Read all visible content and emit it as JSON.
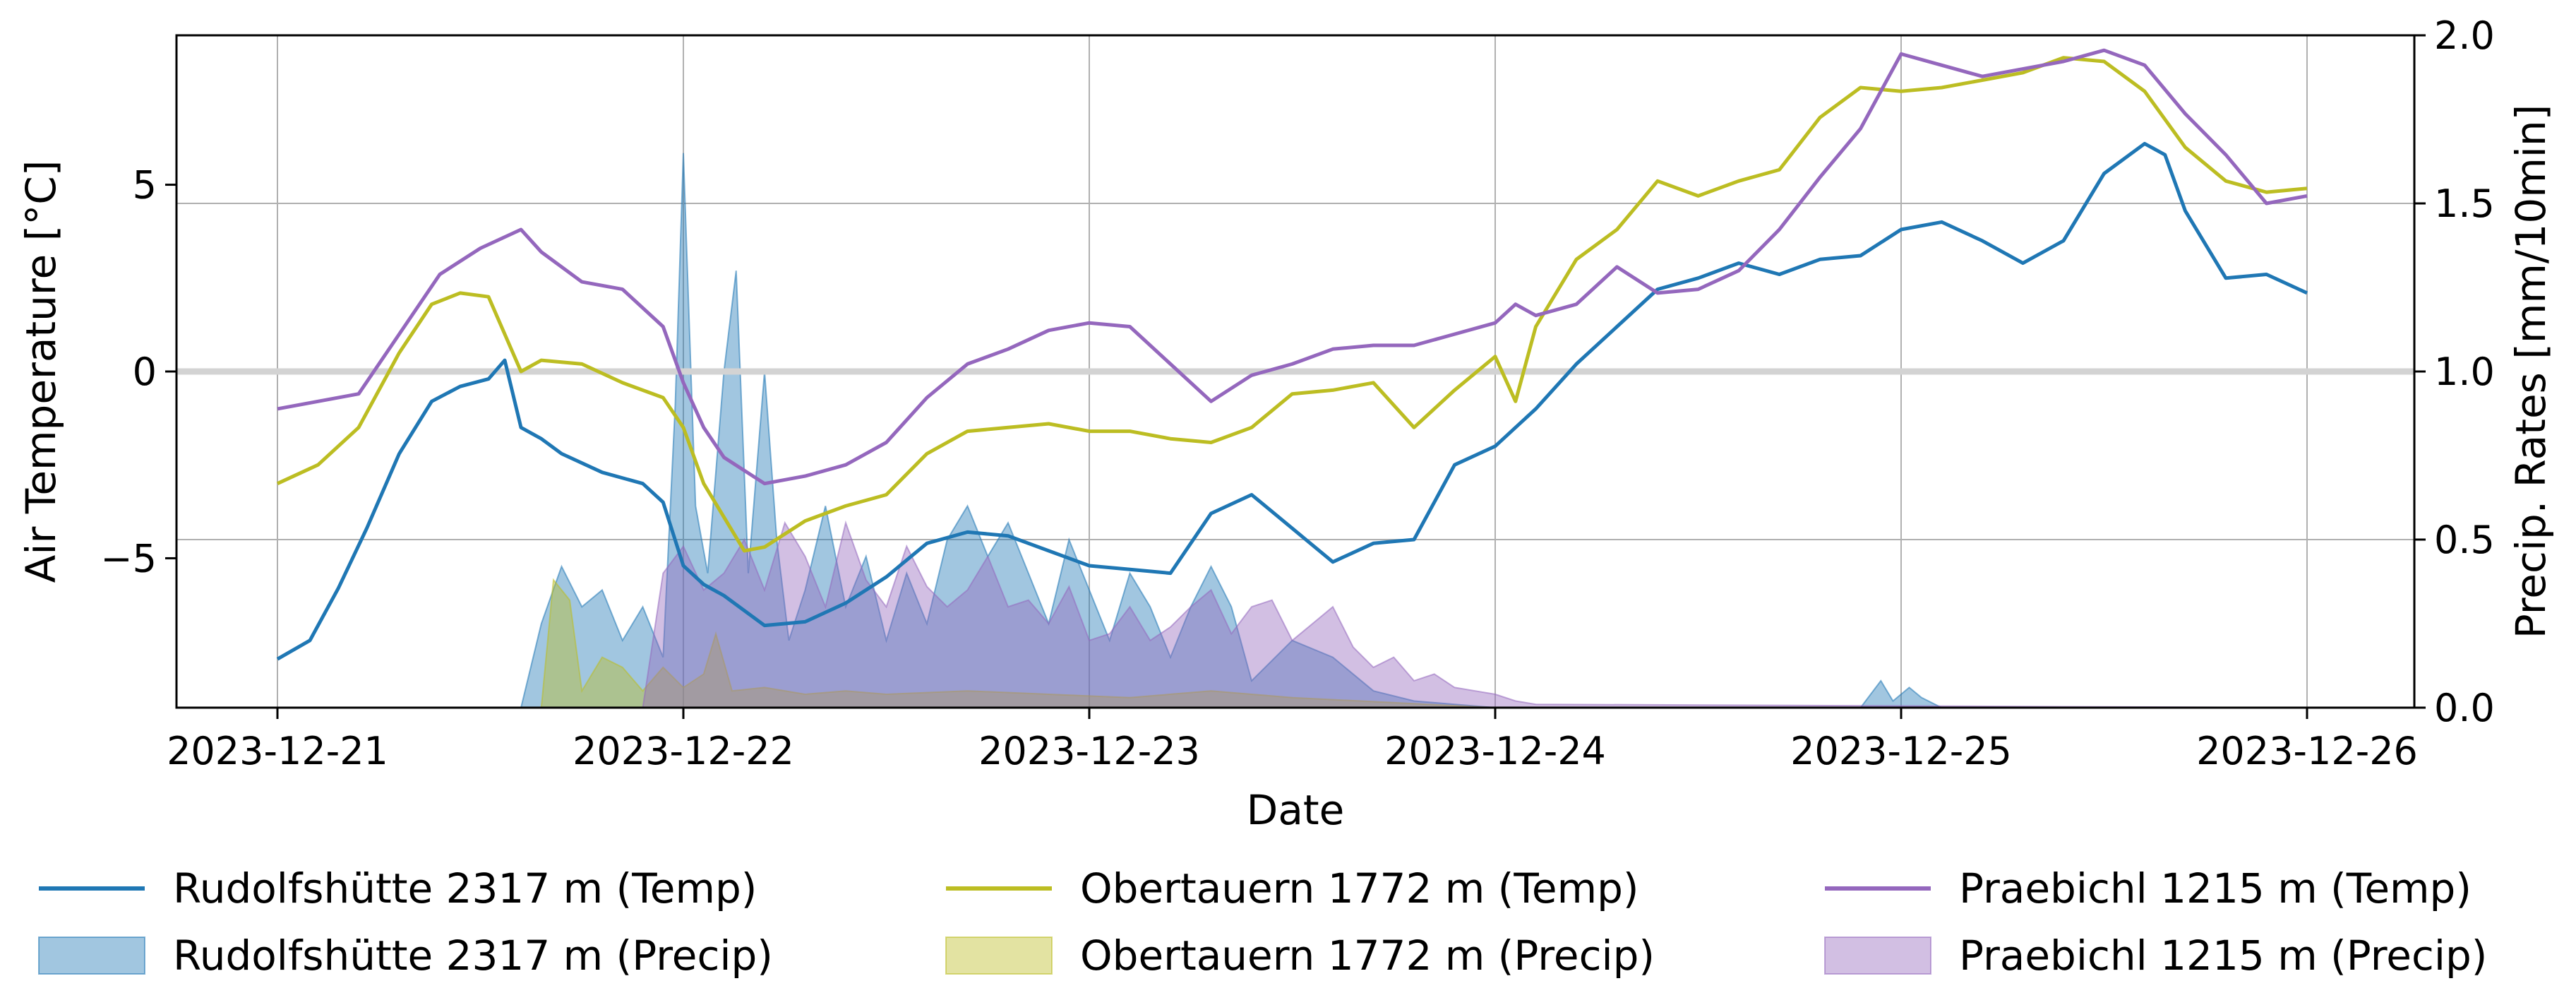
{
  "chart_data": {
    "type": "line",
    "xlabel": "Date",
    "ylabel": "Air Temperature [°C]",
    "y2label": "Precip. Rates [mm/10min]",
    "xlim": [
      0,
      5.08
    ],
    "ylim": [
      -9.0,
      9.0
    ],
    "y2lim": [
      0.0,
      2.0
    ],
    "x_ticks": [
      {
        "pos": 0,
        "label": "2023-12-21"
      },
      {
        "pos": 1,
        "label": "2023-12-22"
      },
      {
        "pos": 2,
        "label": "2023-12-23"
      },
      {
        "pos": 3,
        "label": "2023-12-24"
      },
      {
        "pos": 4,
        "label": "2023-12-25"
      },
      {
        "pos": 5,
        "label": "2023-12-26"
      }
    ],
    "y_ticks": [
      {
        "value": 5,
        "label": "5"
      },
      {
        "value": 0,
        "label": "0"
      },
      {
        "value": -5,
        "label": "−5"
      }
    ],
    "y2_ticks": [
      {
        "value": 0.0,
        "label": "0.0"
      },
      {
        "value": 0.5,
        "label": "0.5"
      },
      {
        "value": 1.0,
        "label": "1.0"
      },
      {
        "value": 1.5,
        "label": "1.5"
      },
      {
        "value": 2.0,
        "label": "2.0"
      }
    ],
    "grid": true,
    "legend_position": "bottom",
    "zero_line_color": "#d3d3d3",
    "temp_series": [
      {
        "name": "Rudolfshütte 2317 m (Temp)",
        "color": "#1f77b4",
        "x": [
          0,
          0.08,
          0.15,
          0.22,
          0.3,
          0.38,
          0.45,
          0.52,
          0.56,
          0.6,
          0.65,
          0.7,
          0.8,
          0.9,
          0.95,
          1.0,
          1.05,
          1.1,
          1.2,
          1.3,
          1.4,
          1.5,
          1.6,
          1.7,
          1.8,
          1.9,
          2.0,
          2.1,
          2.2,
          2.3,
          2.4,
          2.5,
          2.6,
          2.7,
          2.8,
          2.9,
          3.0,
          3.1,
          3.2,
          3.3,
          3.4,
          3.5,
          3.6,
          3.7,
          3.8,
          3.9,
          4.0,
          4.1,
          4.2,
          4.3,
          4.4,
          4.5,
          4.6,
          4.65,
          4.7,
          4.8,
          4.9,
          5.0
        ],
        "y": [
          -7.7,
          -7.2,
          -5.8,
          -4.2,
          -2.2,
          -0.8,
          -0.4,
          -0.2,
          0.3,
          -1.5,
          -1.8,
          -2.2,
          -2.7,
          -3.0,
          -3.5,
          -5.2,
          -5.7,
          -6.0,
          -6.8,
          -6.7,
          -6.2,
          -5.5,
          -4.6,
          -4.3,
          -4.4,
          -4.8,
          -5.2,
          -5.3,
          -5.4,
          -3.8,
          -3.3,
          -4.2,
          -5.1,
          -4.6,
          -4.5,
          -2.5,
          -2.0,
          -1.0,
          0.2,
          1.2,
          2.2,
          2.5,
          2.9,
          2.6,
          3.0,
          3.1,
          3.8,
          4.0,
          3.5,
          2.9,
          3.5,
          5.3,
          6.1,
          5.8,
          4.3,
          2.5,
          2.6,
          2.1
        ]
      },
      {
        "name": "Obertauern 1772 m (Temp)",
        "color": "#bcbd22",
        "x": [
          0,
          0.1,
          0.2,
          0.3,
          0.38,
          0.45,
          0.52,
          0.6,
          0.65,
          0.75,
          0.85,
          0.95,
          1.0,
          1.05,
          1.15,
          1.2,
          1.3,
          1.4,
          1.5,
          1.6,
          1.7,
          1.8,
          1.9,
          2.0,
          2.1,
          2.2,
          2.3,
          2.4,
          2.5,
          2.6,
          2.7,
          2.8,
          2.9,
          3.0,
          3.05,
          3.1,
          3.2,
          3.3,
          3.4,
          3.5,
          3.6,
          3.7,
          3.8,
          3.9,
          4.0,
          4.1,
          4.2,
          4.3,
          4.4,
          4.5,
          4.6,
          4.7,
          4.8,
          4.9,
          5.0
        ],
        "y": [
          -3.0,
          -2.5,
          -1.5,
          0.5,
          1.8,
          2.1,
          2.0,
          0.0,
          0.3,
          0.2,
          -0.3,
          -0.7,
          -1.5,
          -3.0,
          -4.8,
          -4.7,
          -4.0,
          -3.6,
          -3.3,
          -2.2,
          -1.6,
          -1.5,
          -1.4,
          -1.6,
          -1.6,
          -1.8,
          -1.9,
          -1.5,
          -0.6,
          -0.5,
          -0.3,
          -1.5,
          -0.5,
          0.4,
          -0.8,
          1.2,
          3.0,
          3.8,
          5.1,
          4.7,
          5.1,
          5.4,
          6.8,
          7.6,
          7.5,
          7.6,
          7.8,
          8.0,
          8.4,
          8.3,
          7.5,
          6.0,
          5.1,
          4.8,
          4.9
        ]
      },
      {
        "name": "Praebichl 1215 m (Temp)",
        "color": "#9467bd",
        "x": [
          0,
          0.1,
          0.2,
          0.3,
          0.4,
          0.5,
          0.6,
          0.65,
          0.75,
          0.85,
          0.95,
          1.0,
          1.05,
          1.1,
          1.2,
          1.3,
          1.4,
          1.5,
          1.6,
          1.7,
          1.8,
          1.9,
          2.0,
          2.1,
          2.2,
          2.3,
          2.4,
          2.5,
          2.6,
          2.7,
          2.8,
          2.9,
          3.0,
          3.05,
          3.1,
          3.2,
          3.3,
          3.4,
          3.5,
          3.6,
          3.7,
          3.8,
          3.9,
          4.0,
          4.1,
          4.2,
          4.3,
          4.4,
          4.5,
          4.6,
          4.7,
          4.8,
          4.9,
          5.0
        ],
        "y": [
          -1.0,
          -0.8,
          -0.6,
          1.0,
          2.6,
          3.3,
          3.8,
          3.2,
          2.4,
          2.2,
          1.2,
          -0.3,
          -1.5,
          -2.3,
          -3.0,
          -2.8,
          -2.5,
          -1.9,
          -0.7,
          0.2,
          0.6,
          1.1,
          1.3,
          1.2,
          0.2,
          -0.8,
          -0.1,
          0.2,
          0.6,
          0.7,
          0.7,
          1.0,
          1.3,
          1.8,
          1.5,
          1.8,
          2.8,
          2.1,
          2.2,
          2.7,
          3.8,
          5.2,
          6.5,
          8.5,
          8.2,
          7.9,
          8.1,
          8.3,
          8.6,
          8.2,
          6.9,
          5.8,
          4.5,
          4.7
        ]
      }
    ],
    "precip_series": [
      {
        "name": "Rudolfshütte 2317 m (Precip)",
        "color": "#1f77b4",
        "x": [
          0,
          0.6,
          0.65,
          0.7,
          0.75,
          0.8,
          0.85,
          0.9,
          0.95,
          0.98,
          1.0,
          1.03,
          1.06,
          1.1,
          1.13,
          1.16,
          1.2,
          1.23,
          1.26,
          1.3,
          1.35,
          1.4,
          1.45,
          1.5,
          1.55,
          1.6,
          1.65,
          1.7,
          1.75,
          1.8,
          1.85,
          1.9,
          1.95,
          2.0,
          2.05,
          2.1,
          2.15,
          2.2,
          2.25,
          2.3,
          2.35,
          2.4,
          2.5,
          2.6,
          2.7,
          2.8,
          3.0,
          3.9,
          3.95,
          3.98,
          4.02,
          4.05,
          4.1,
          5.0
        ],
        "y": [
          0.0,
          0.0,
          0.25,
          0.42,
          0.3,
          0.35,
          0.2,
          0.3,
          0.15,
          0.9,
          1.65,
          0.6,
          0.4,
          1.0,
          1.3,
          0.4,
          1.0,
          0.5,
          0.2,
          0.35,
          0.6,
          0.3,
          0.45,
          0.2,
          0.4,
          0.25,
          0.5,
          0.6,
          0.45,
          0.55,
          0.4,
          0.25,
          0.5,
          0.35,
          0.2,
          0.4,
          0.3,
          0.15,
          0.3,
          0.42,
          0.3,
          0.08,
          0.2,
          0.15,
          0.05,
          0.02,
          0.0,
          0.0,
          0.08,
          0.02,
          0.06,
          0.03,
          0.0,
          0.0
        ]
      },
      {
        "name": "Obertauern 1772 m (Precip)",
        "color": "#bcbd22",
        "x": [
          0,
          0.65,
          0.68,
          0.72,
          0.75,
          0.8,
          0.85,
          0.9,
          0.95,
          1.0,
          1.05,
          1.08,
          1.12,
          1.2,
          1.3,
          1.4,
          1.5,
          1.7,
          1.9,
          2.1,
          2.3,
          2.5,
          3.0,
          5.0
        ],
        "y": [
          0.0,
          0.0,
          0.38,
          0.32,
          0.05,
          0.15,
          0.12,
          0.05,
          0.12,
          0.06,
          0.1,
          0.22,
          0.05,
          0.06,
          0.04,
          0.05,
          0.04,
          0.05,
          0.04,
          0.03,
          0.05,
          0.03,
          0.0,
          0.0
        ]
      },
      {
        "name": "Praebichl 1215 m (Precip)",
        "color": "#9467bd",
        "x": [
          0,
          0.9,
          0.95,
          1.0,
          1.05,
          1.1,
          1.15,
          1.2,
          1.25,
          1.3,
          1.35,
          1.4,
          1.45,
          1.5,
          1.55,
          1.6,
          1.65,
          1.7,
          1.75,
          1.8,
          1.85,
          1.9,
          1.95,
          2.0,
          2.05,
          2.1,
          2.15,
          2.2,
          2.25,
          2.3,
          2.35,
          2.4,
          2.45,
          2.5,
          2.55,
          2.6,
          2.65,
          2.7,
          2.75,
          2.8,
          2.85,
          2.9,
          2.95,
          3.0,
          3.05,
          3.1,
          5.0
        ],
        "y": [
          0.0,
          0.0,
          0.4,
          0.48,
          0.35,
          0.4,
          0.5,
          0.35,
          0.55,
          0.45,
          0.3,
          0.55,
          0.38,
          0.3,
          0.48,
          0.36,
          0.3,
          0.35,
          0.45,
          0.3,
          0.32,
          0.25,
          0.36,
          0.2,
          0.22,
          0.3,
          0.2,
          0.24,
          0.3,
          0.35,
          0.22,
          0.3,
          0.32,
          0.2,
          0.25,
          0.3,
          0.18,
          0.12,
          0.15,
          0.08,
          0.1,
          0.06,
          0.05,
          0.04,
          0.02,
          0.01,
          0.0
        ]
      }
    ]
  }
}
